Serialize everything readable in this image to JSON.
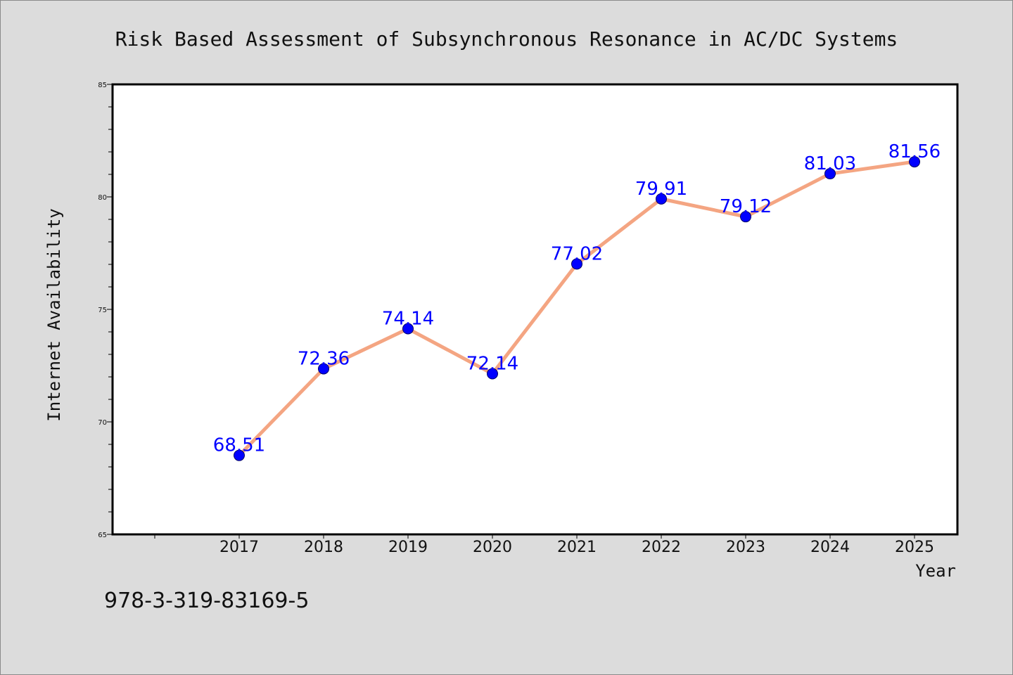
{
  "chart_data": {
    "type": "line",
    "title": "Risk Based Assessment of Subsynchronous Resonance in AC/DC Systems",
    "xlabel": "Year",
    "ylabel": "Internet Availability",
    "categories": [
      "2017",
      "2018",
      "2019",
      "2020",
      "2021",
      "2022",
      "2023",
      "2024",
      "2025"
    ],
    "values": [
      68.51,
      72.36,
      74.14,
      72.14,
      77.02,
      79.91,
      79.12,
      81.03,
      81.56
    ],
    "data_labels": [
      "68.51",
      "72.36",
      "74.14",
      "72.14",
      "77.02",
      "79.91",
      "79.12",
      "81.03",
      "81.56"
    ],
    "ylim": [
      65,
      85
    ],
    "yticks": [
      "65",
      "70",
      "75",
      "80",
      "85"
    ],
    "grid": false,
    "legend": "none",
    "line_color": "#f4a582",
    "marker_color": "#0000ff",
    "label_color": "#0000ff"
  },
  "footer": {
    "isbn": "978-3-319-83169-5"
  }
}
